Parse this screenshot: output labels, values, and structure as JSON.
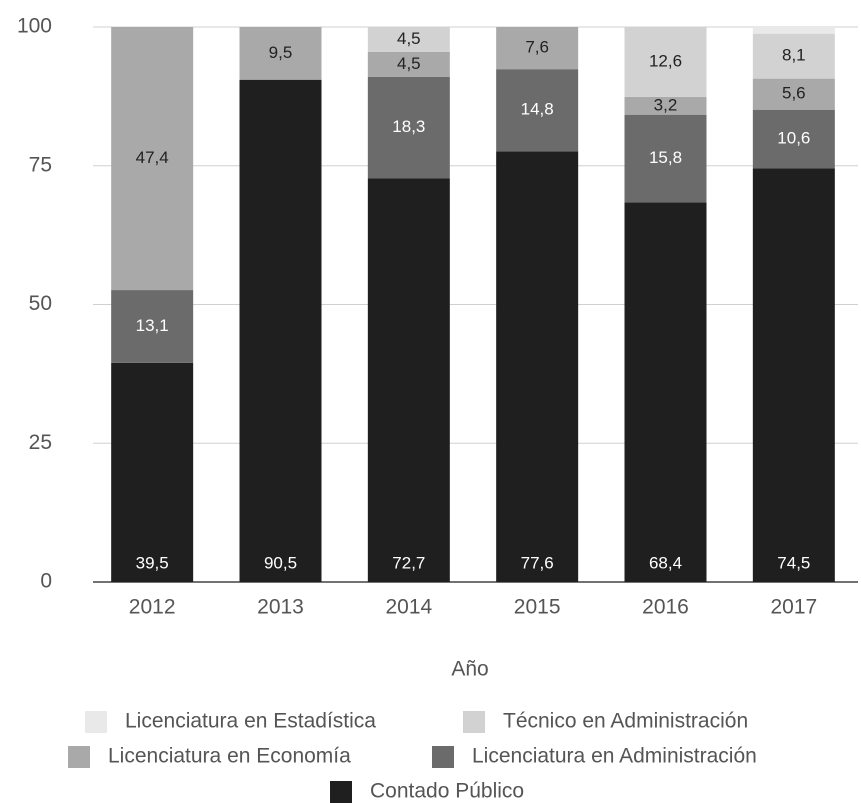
{
  "chart_data": {
    "type": "stacked-bar",
    "x_label": "Año",
    "categories": [
      "2012",
      "2013",
      "2014",
      "2015",
      "2016",
      "2017"
    ],
    "series": [
      {
        "name": "Contado Público",
        "color": "#1f1f1f",
        "values": [
          39.5,
          90.5,
          72.7,
          77.6,
          68.4,
          74.5
        ],
        "value_labels": [
          "39,5",
          "90,5",
          "72,7",
          "77,6",
          "68,4",
          "74,5"
        ]
      },
      {
        "name": "Licenciatura en Administración",
        "color": "#6b6b6b",
        "values": [
          13.1,
          null,
          18.3,
          14.8,
          15.8,
          10.6
        ],
        "value_labels": [
          "13,1",
          null,
          "18,3",
          "14,8",
          "15,8",
          "10,6"
        ]
      },
      {
        "name": "Licenciatura en Economía",
        "color": "#a9a9a9",
        "values": [
          47.4,
          9.5,
          4.5,
          7.6,
          3.2,
          5.6
        ],
        "value_labels": [
          "47,4",
          "9,5",
          "4,5",
          "7,6",
          "3,2",
          "5,6"
        ]
      },
      {
        "name": "Técnico en Administración",
        "color": "#d2d2d2",
        "values": [
          null,
          null,
          4.5,
          null,
          12.6,
          8.1
        ],
        "value_labels": [
          null,
          null,
          "4,5",
          null,
          "12,6",
          "8,1"
        ]
      },
      {
        "name": "Licenciatura en Estadística",
        "color": "#e9e9e9",
        "values": [
          null,
          null,
          null,
          null,
          null,
          1.2
        ],
        "value_labels": [
          null,
          null,
          null,
          null,
          null,
          null
        ]
      }
    ],
    "ylim": [
      0,
      100
    ],
    "yticks": [
      0,
      25,
      50,
      75,
      100
    ],
    "grid": true
  }
}
